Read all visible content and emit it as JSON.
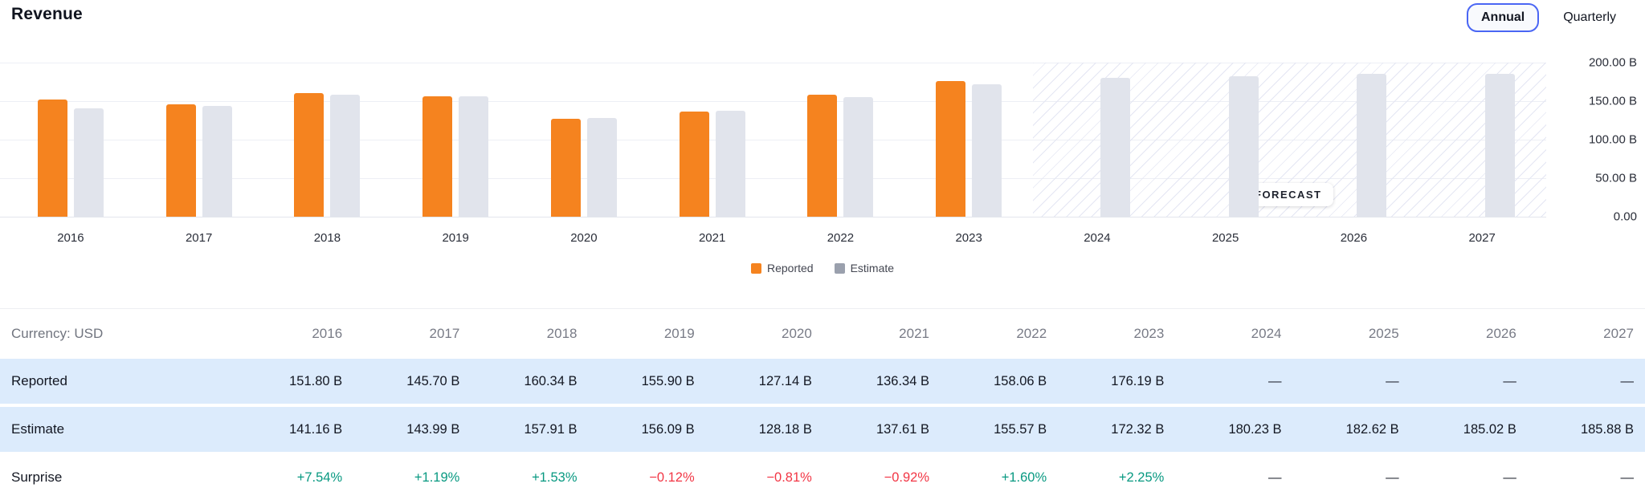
{
  "header": {
    "title": "Revenue",
    "toggle": {
      "annual": "Annual",
      "quarterly": "Quarterly",
      "selected": "Annual"
    }
  },
  "chart_data": {
    "type": "bar",
    "title": "Revenue",
    "categories": [
      "2016",
      "2017",
      "2018",
      "2019",
      "2020",
      "2021",
      "2022",
      "2023",
      "2024",
      "2025",
      "2026",
      "2027"
    ],
    "series": [
      {
        "name": "Reported",
        "color": "#f5831f",
        "values": [
          151.8,
          145.7,
          160.34,
          155.9,
          127.14,
          136.34,
          158.06,
          176.19,
          null,
          null,
          null,
          null
        ]
      },
      {
        "name": "Estimate",
        "color": "#e1e4ec",
        "legend_color": "#9aa0ad",
        "values": [
          141.16,
          143.99,
          157.91,
          156.09,
          128.18,
          137.61,
          155.57,
          172.32,
          180.23,
          182.62,
          185.02,
          185.88
        ]
      }
    ],
    "unit": "B",
    "ylim": [
      0,
      200
    ],
    "yticks": [
      "200.00 B",
      "150.00 B",
      "100.00 B",
      "50.00 B",
      "0.00"
    ],
    "y_axis_side": "right",
    "grid": true,
    "legend_position": "bottom",
    "forecast_start_category": "2024",
    "forecast_label": "FORECAST"
  },
  "table": {
    "corner_label": "Currency: USD",
    "years": [
      "2016",
      "2017",
      "2018",
      "2019",
      "2020",
      "2021",
      "2022",
      "2023",
      "2024",
      "2025",
      "2026",
      "2027"
    ],
    "rows": [
      {
        "label": "Reported",
        "highlight": true,
        "values": [
          "151.80 B",
          "145.70 B",
          "160.34 B",
          "155.90 B",
          "127.14 B",
          "136.34 B",
          "158.06 B",
          "176.19 B",
          "—",
          "—",
          "—",
          "—"
        ]
      },
      {
        "label": "Estimate",
        "highlight": true,
        "values": [
          "141.16 B",
          "143.99 B",
          "157.91 B",
          "156.09 B",
          "128.18 B",
          "137.61 B",
          "155.57 B",
          "172.32 B",
          "180.23 B",
          "182.62 B",
          "185.02 B",
          "185.88 B"
        ]
      },
      {
        "label": "Surprise",
        "highlight": false,
        "values": [
          "+7.54%",
          "+1.19%",
          "+1.53%",
          "−0.12%",
          "−0.81%",
          "−0.92%",
          "+1.60%",
          "+2.25%",
          "—",
          "—",
          "—",
          "—"
        ]
      }
    ]
  },
  "colors": {
    "reported_bar": "#f5831f",
    "estimate_bar": "#e1e4ec",
    "estimate_legend": "#9aa0ad",
    "row_highlight": "#dcebfc",
    "positive": "#089981",
    "negative": "#f23645",
    "selected_button_border": "#4a66f4"
  }
}
